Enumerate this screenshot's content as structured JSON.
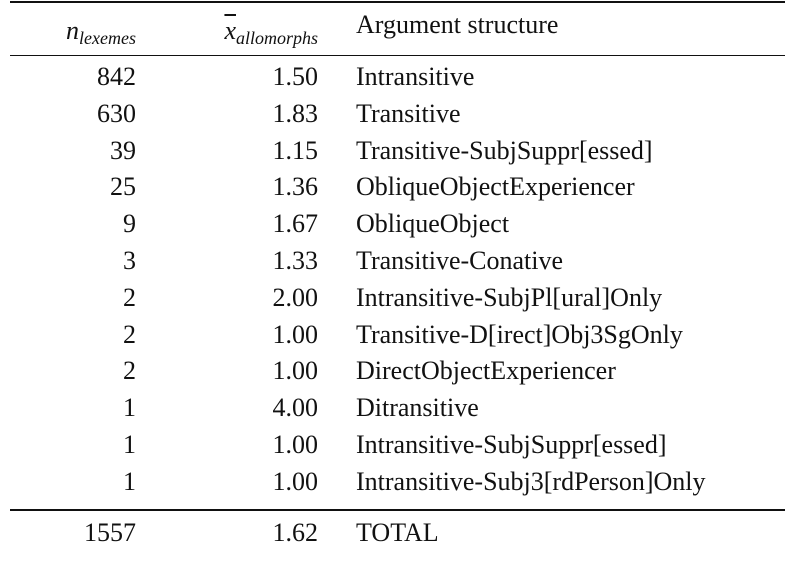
{
  "table": {
    "header": [
      {
        "symbol": "n",
        "subscript": "lexemes"
      },
      {
        "symbol": "x",
        "subscript": "allomorphs"
      },
      "Argument structure"
    ],
    "rows": [
      [
        "842",
        "1.50",
        "Intransitive"
      ],
      [
        "630",
        "1.83",
        "Transitive"
      ],
      [
        "39",
        "1.15",
        "Transitive-SubjSuppr[essed]"
      ],
      [
        "25",
        "1.36",
        "ObliqueObjectExperiencer"
      ],
      [
        "9",
        "1.67",
        "ObliqueObject"
      ],
      [
        "3",
        "1.33",
        "Transitive-Conative"
      ],
      [
        "2",
        "2.00",
        "Intransitive-SubjPl[ural]Only"
      ],
      [
        "2",
        "1.00",
        "Transitive-D[irect]Obj3SgOnly"
      ],
      [
        "2",
        "1.00",
        "DirectObjectExperiencer"
      ],
      [
        "1",
        "4.00",
        "Ditransitive"
      ],
      [
        "1",
        "1.00",
        "Intransitive-SubjSuppr[essed]"
      ],
      [
        "1",
        "1.00",
        "Intransitive-Subj3[rdPerson]Only"
      ]
    ],
    "total": [
      "1557",
      "1.62",
      "TOTAL"
    ]
  }
}
